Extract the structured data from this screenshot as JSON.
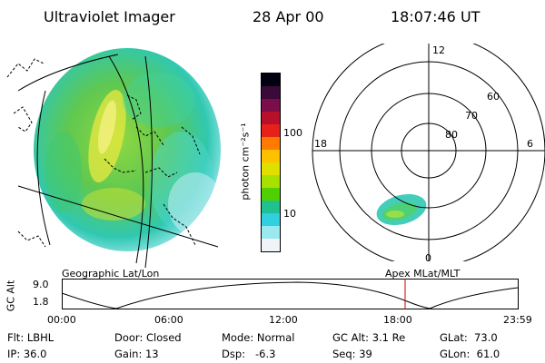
{
  "header": {
    "instrument": "Ultraviolet Imager",
    "date": "28 Apr 00",
    "time": "18:07:46 UT"
  },
  "colorbar": {
    "unit_label": "photon cm⁻²s⁻¹",
    "ticks": [
      "100",
      "10"
    ],
    "colors": [
      "#000010",
      "#3a0a3a",
      "#7a0d4a",
      "#b8102a",
      "#e8201a",
      "#ff7a00",
      "#ffc000",
      "#e0e000",
      "#a8e000",
      "#50d000",
      "#20c090",
      "#30d0e0",
      "#9ae8f0",
      "#f0f4f8"
    ]
  },
  "left_panel": {
    "label": "Geographic Lat/Lon"
  },
  "right_panel": {
    "label": "Apex MLat/MLT",
    "mlt_labels": {
      "top": "12",
      "left": "18",
      "right": "6",
      "bottom": "0"
    },
    "lat_labels": [
      "60",
      "70",
      "80"
    ]
  },
  "altitude_plot": {
    "ylabel": "GC Alt",
    "yticks": [
      "9.0",
      "1.8"
    ],
    "xticks": [
      "00:00",
      "06:00",
      "12:00",
      "18:00",
      "23:59"
    ],
    "current_time_marker": "18:07",
    "marker_color": "#cc0000"
  },
  "status": {
    "flt": "Flt: LBHL",
    "ip": "IP: 36.0",
    "door": "Door: Closed",
    "gain": "Gain: 13",
    "mode": "Mode: Normal",
    "dsp": "Dsp:   -6.3",
    "gc_alt": "GC Alt: 3.1 Re",
    "seq": "Seq: 39",
    "glat": "GLat:  73.0",
    "glon": "GLon:  61.0"
  }
}
